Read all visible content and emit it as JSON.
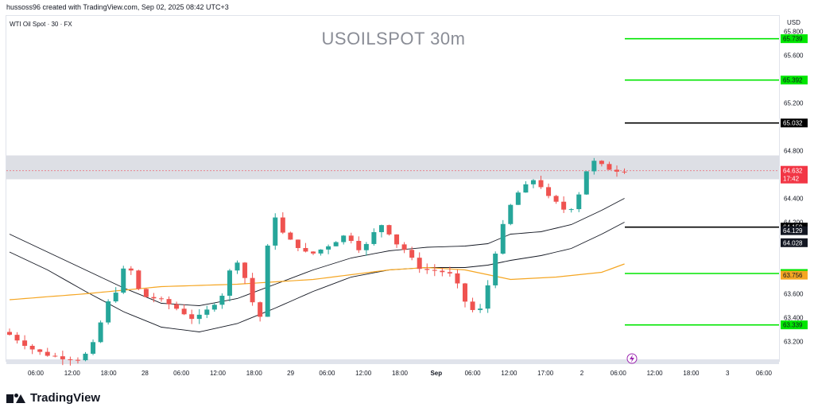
{
  "header": {
    "credit": "hussoss96 created with TradingView.com, Sep 02, 2025 08:42 UTC+3",
    "symbol": "WTI Oil Spot · 30 · FX",
    "title": "USOILSPOT 30m",
    "currency": "USD"
  },
  "footer": {
    "brand": "TradingView"
  },
  "colors": {
    "up": "#26a69a",
    "down": "#ef5350",
    "ma_long": "#f5a623",
    "band": "#131722",
    "level_green": "#00e600",
    "level_black": "#000000",
    "zone": "#d1d4dc",
    "price": "#f23645"
  },
  "chart_data": {
    "type": "candlestick",
    "y_ticks": [
      "65.800",
      "65.600",
      "65.200",
      "64.800",
      "64.400",
      "64.200",
      "63.600",
      "63.400",
      "63.200"
    ],
    "ylim": [
      63.03,
      65.93
    ],
    "x_ticks": [
      "06:00",
      "12:00",
      "18:00",
      "28",
      "06:00",
      "12:00",
      "18:00",
      "29",
      "06:00",
      "12:00",
      "18:00",
      "Sep",
      "06:00",
      "12:00",
      "17:00",
      "2",
      "06:00",
      "12:00",
      "18:00",
      "3",
      "06:00"
    ],
    "current_price": {
      "value": "64.632",
      "countdown": "17:42"
    },
    "resistance_zone": [
      64.56,
      64.76
    ],
    "levels": [
      {
        "value": 65.739,
        "label": "65.739",
        "color": "green"
      },
      {
        "value": 65.392,
        "label": "65.392",
        "color": "green"
      },
      {
        "value": 65.032,
        "label": "65.032",
        "color": "black"
      },
      {
        "value": 64.159,
        "label": "64.159",
        "color": "black"
      },
      {
        "value": 63.77,
        "label": "63.770",
        "color": "green"
      },
      {
        "value": 63.339,
        "label": "63.339",
        "color": "green"
      }
    ],
    "indicator_labels": [
      {
        "value": 64.129,
        "label": "64.129",
        "kind": "band"
      },
      {
        "value": 64.028,
        "label": "64.028",
        "kind": "band"
      },
      {
        "value": 63.756,
        "label": "63.756",
        "kind": "ma"
      }
    ],
    "price_path": [
      [
        0,
        63.28
      ],
      [
        2,
        63.2
      ],
      [
        4,
        63.12
      ],
      [
        6,
        63.08
      ],
      [
        8,
        63.06
      ],
      [
        10,
        63.05
      ],
      [
        11,
        63.12
      ],
      [
        12,
        63.22
      ],
      [
        13,
        63.45
      ],
      [
        14,
        63.58
      ],
      [
        15,
        63.65
      ],
      [
        16,
        63.9
      ],
      [
        17,
        63.72
      ],
      [
        18,
        63.58
      ],
      [
        19,
        63.57
      ],
      [
        20,
        63.56
      ],
      [
        22,
        63.5
      ],
      [
        24,
        63.42
      ],
      [
        25,
        63.38
      ],
      [
        27,
        63.48
      ],
      [
        29,
        63.62
      ],
      [
        30,
        63.9
      ],
      [
        31,
        63.86
      ],
      [
        32,
        63.65
      ],
      [
        33,
        63.45
      ],
      [
        34,
        63.38
      ],
      [
        35,
        64.4
      ],
      [
        36,
        64.15
      ],
      [
        37,
        64.08
      ],
      [
        38,
        64.02
      ],
      [
        39,
        63.98
      ],
      [
        40,
        63.92
      ],
      [
        41,
        63.95
      ],
      [
        43,
        64.02
      ],
      [
        45,
        64.1
      ],
      [
        47,
        63.95
      ],
      [
        49,
        64.15
      ],
      [
        50,
        64.2
      ],
      [
        51,
        64.05
      ],
      [
        53,
        63.95
      ],
      [
        54,
        63.85
      ],
      [
        55,
        63.8
      ],
      [
        56,
        63.8
      ],
      [
        58,
        63.78
      ],
      [
        59,
        63.75
      ],
      [
        60,
        63.62
      ],
      [
        61,
        63.48
      ],
      [
        62,
        63.45
      ],
      [
        63,
        63.48
      ],
      [
        64,
        63.8
      ],
      [
        65,
        64.05
      ],
      [
        66,
        64.25
      ],
      [
        67,
        64.4
      ],
      [
        68,
        64.48
      ],
      [
        69,
        64.52
      ],
      [
        70,
        64.58
      ],
      [
        71,
        64.45
      ],
      [
        72,
        64.38
      ],
      [
        73,
        64.35
      ],
      [
        74,
        64.28
      ],
      [
        75,
        64.35
      ],
      [
        76,
        64.5
      ],
      [
        77,
        64.72
      ],
      [
        78,
        64.7
      ],
      [
        79,
        64.66
      ],
      [
        80,
        64.64
      ],
      [
        81,
        64.632
      ]
    ],
    "ma_long": [
      [
        0,
        63.55
      ],
      [
        10,
        63.6
      ],
      [
        20,
        63.66
      ],
      [
        30,
        63.68
      ],
      [
        40,
        63.72
      ],
      [
        50,
        63.8
      ],
      [
        55,
        63.82
      ],
      [
        60,
        63.8
      ],
      [
        66,
        63.72
      ],
      [
        72,
        63.74
      ],
      [
        78,
        63.78
      ],
      [
        81,
        63.85
      ]
    ],
    "band_upper": [
      [
        0,
        64.1
      ],
      [
        5,
        63.95
      ],
      [
        10,
        63.8
      ],
      [
        15,
        63.65
      ],
      [
        20,
        63.52
      ],
      [
        25,
        63.5
      ],
      [
        30,
        63.56
      ],
      [
        35,
        63.68
      ],
      [
        40,
        63.8
      ],
      [
        45,
        63.9
      ],
      [
        50,
        63.96
      ],
      [
        55,
        63.99
      ],
      [
        60,
        64.0
      ],
      [
        63,
        64.02
      ],
      [
        66,
        64.1
      ],
      [
        70,
        64.12
      ],
      [
        74,
        64.18
      ],
      [
        78,
        64.3
      ],
      [
        81,
        64.4
      ]
    ],
    "band_lower": [
      [
        0,
        63.95
      ],
      [
        5,
        63.8
      ],
      [
        10,
        63.62
      ],
      [
        15,
        63.45
      ],
      [
        20,
        63.32
      ],
      [
        25,
        63.28
      ],
      [
        30,
        63.35
      ],
      [
        35,
        63.48
      ],
      [
        40,
        63.62
      ],
      [
        45,
        63.74
      ],
      [
        50,
        63.8
      ],
      [
        55,
        63.82
      ],
      [
        60,
        63.82
      ],
      [
        63,
        63.84
      ],
      [
        66,
        63.88
      ],
      [
        70,
        63.92
      ],
      [
        74,
        63.98
      ],
      [
        78,
        64.1
      ],
      [
        81,
        64.2
      ]
    ]
  }
}
